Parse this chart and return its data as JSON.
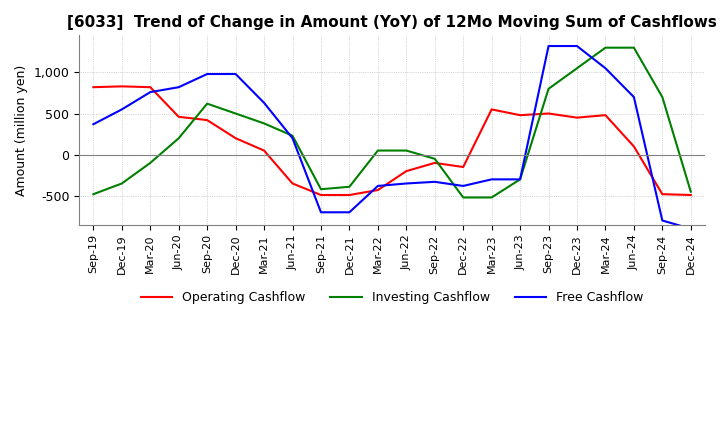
{
  "title": "[6033]  Trend of Change in Amount (YoY) of 12Mo Moving Sum of Cashflows",
  "ylabel": "Amount (million yen)",
  "x_labels": [
    "Sep-19",
    "Dec-19",
    "Mar-20",
    "Jun-20",
    "Sep-20",
    "Dec-20",
    "Mar-21",
    "Jun-21",
    "Sep-21",
    "Dec-21",
    "Mar-22",
    "Jun-22",
    "Sep-22",
    "Dec-22",
    "Mar-23",
    "Jun-23",
    "Sep-23",
    "Dec-23",
    "Mar-24",
    "Jun-24",
    "Sep-24",
    "Dec-24"
  ],
  "operating": [
    820,
    830,
    820,
    460,
    420,
    200,
    50,
    -350,
    -490,
    -490,
    -430,
    -200,
    -100,
    -150,
    550,
    480,
    500,
    450,
    480,
    100,
    -480,
    -490
  ],
  "investing": [
    -480,
    -350,
    -100,
    200,
    620,
    500,
    380,
    230,
    -420,
    -390,
    50,
    50,
    -50,
    -520,
    -520,
    -300,
    800,
    1050,
    1300,
    1300,
    700,
    -450
  ],
  "free": [
    370,
    550,
    760,
    820,
    980,
    980,
    630,
    200,
    -700,
    -700,
    -380,
    -350,
    -330,
    -380,
    -300,
    -300,
    1320,
    1320,
    1050,
    700,
    -800,
    -900
  ],
  "ylim": [
    -850,
    1450
  ],
  "yticks": [
    -500,
    0,
    500,
    1000
  ],
  "colors": {
    "operating": "#ff0000",
    "investing": "#008000",
    "free": "#0000ff"
  },
  "legend_labels": [
    "Operating Cashflow",
    "Investing Cashflow",
    "Free Cashflow"
  ],
  "bg_color": "#ffffff",
  "grid_color": "#b0b0b0"
}
